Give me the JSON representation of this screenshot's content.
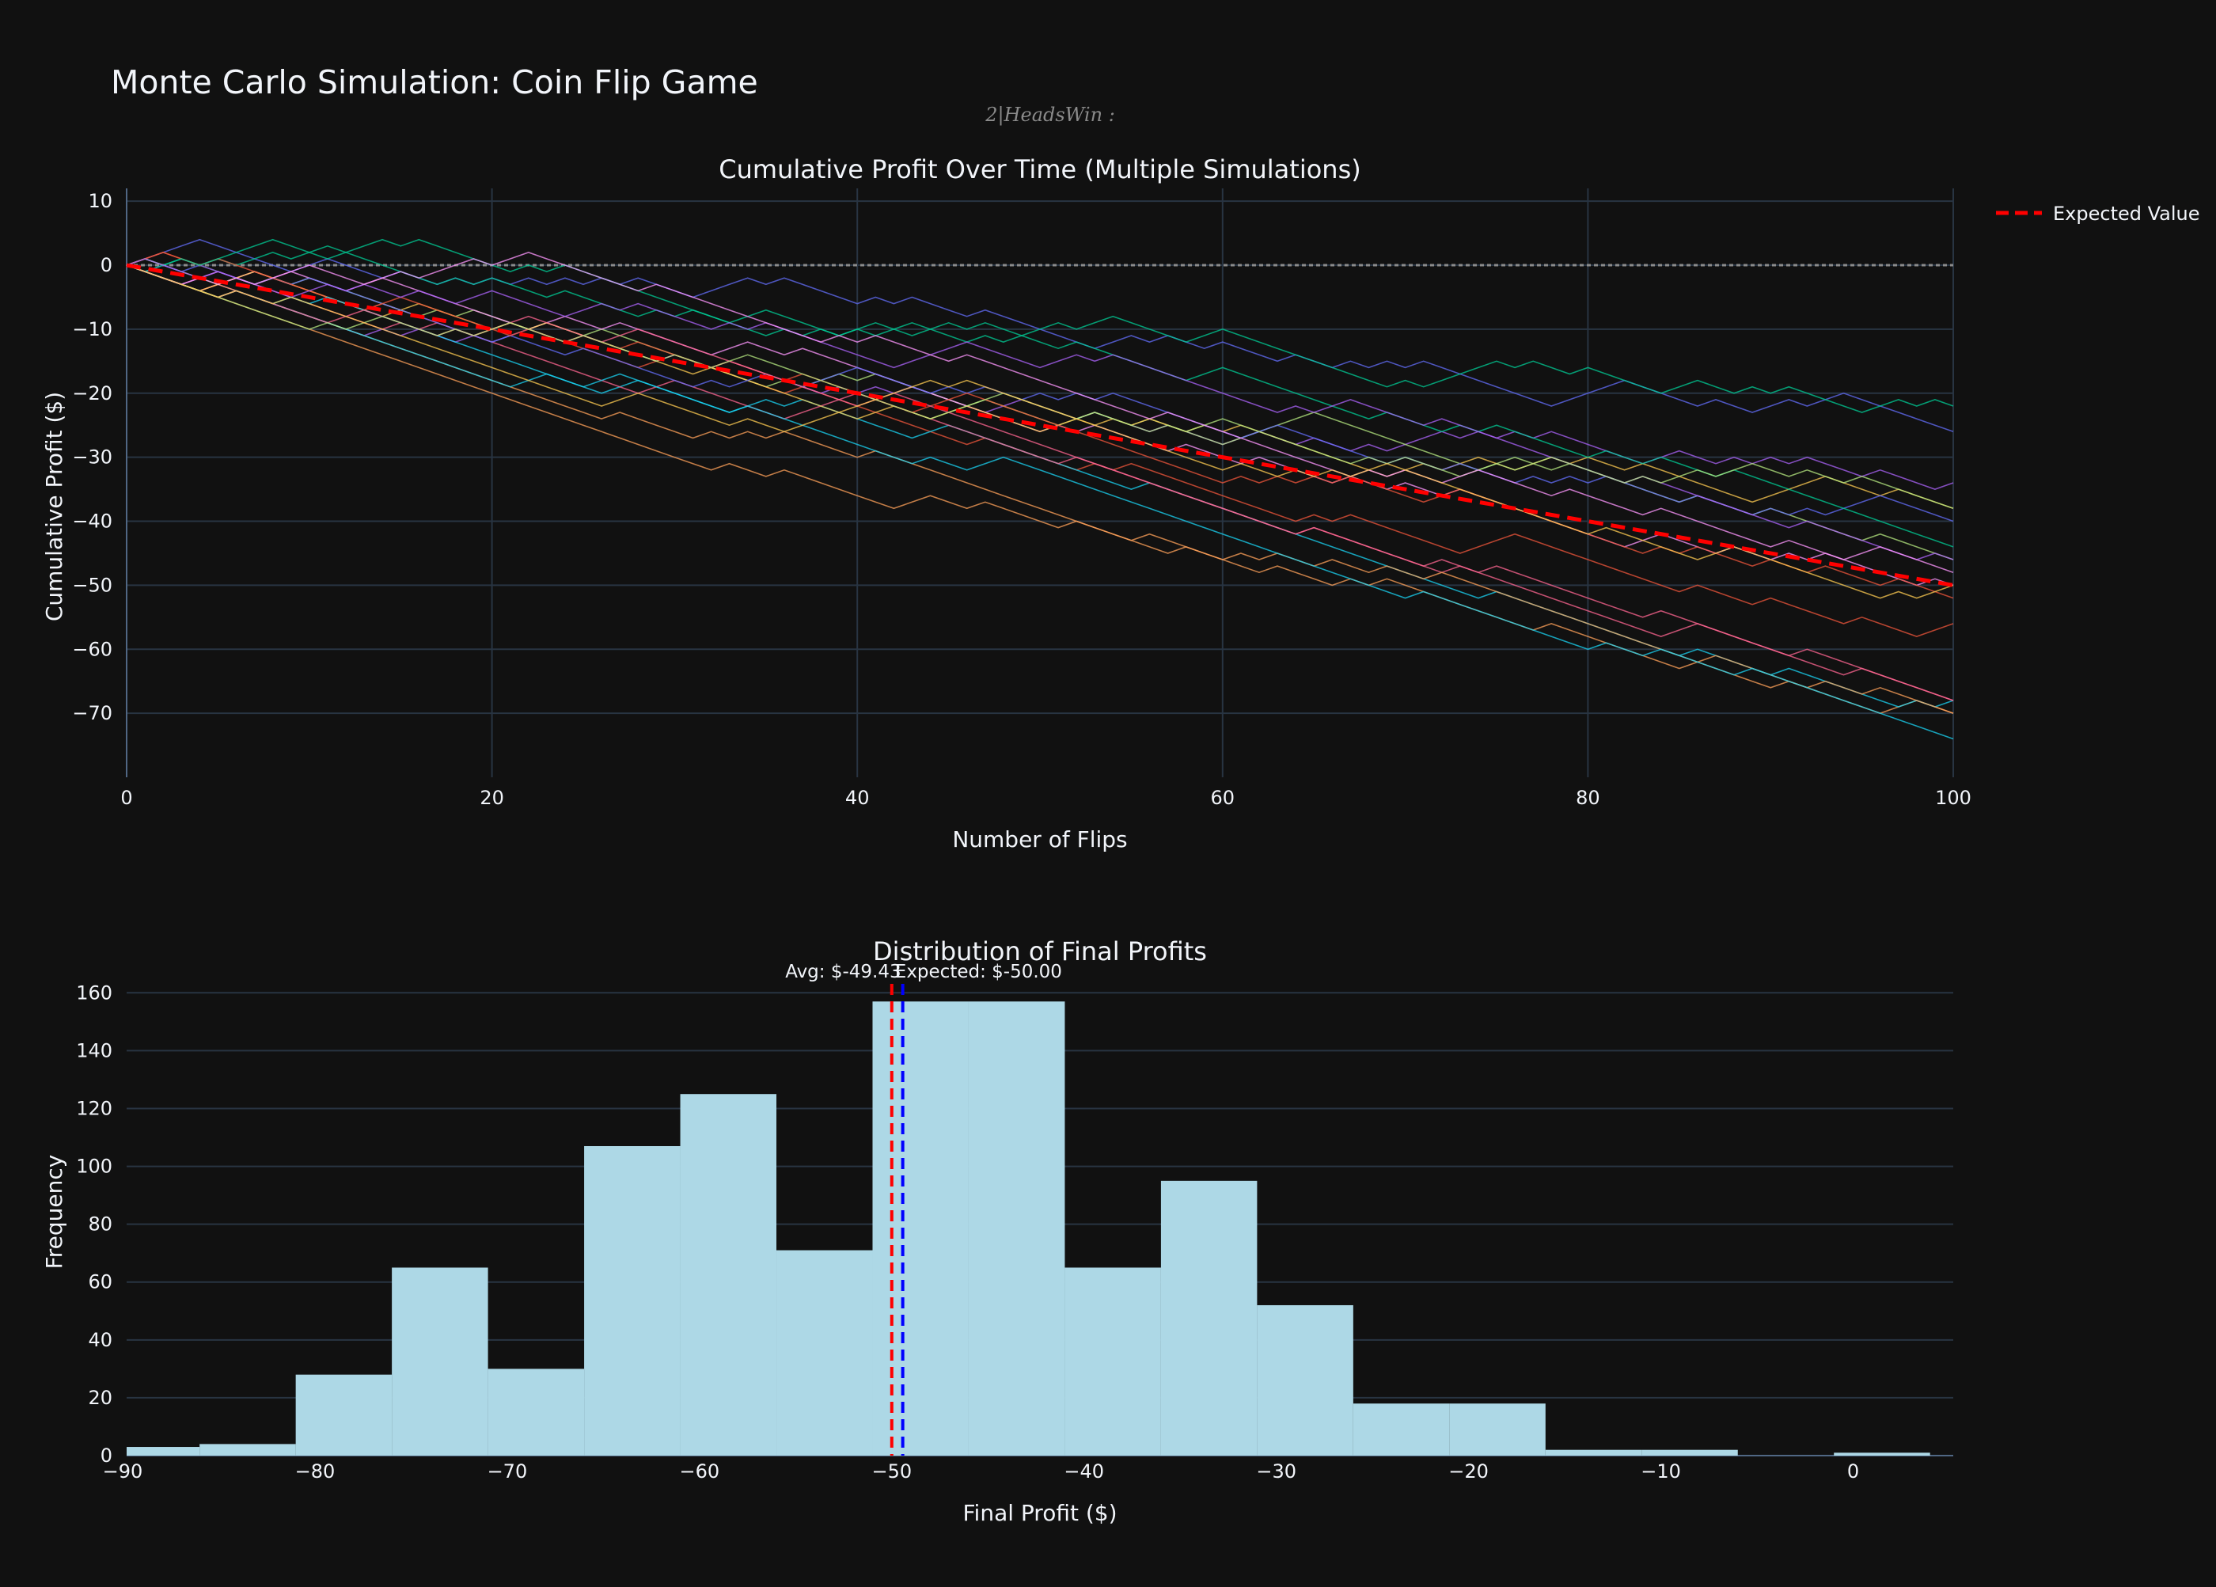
{
  "title": "Monte Carlo Simulation: Coin Flip Game",
  "subtitle": "2|HeadsWin :",
  "colors": {
    "background": "#111111",
    "grid": "#283442",
    "expected_line": "#ff0000",
    "average_line": "#0000ff",
    "histogram_bar": "#add8e6",
    "simulation_palette": [
      "#636efa",
      "#ef553b",
      "#00cc96",
      "#ab63fa",
      "#ffa15a",
      "#19d3f3",
      "#ff6692",
      "#b6e880",
      "#ff97ff",
      "#fecb52"
    ]
  },
  "chart_data": [
    {
      "type": "line",
      "title": "Cumulative Profit Over Time (Multiple Simulations)",
      "xlabel": "Number of Flips",
      "ylabel": "Cumulative Profit ($)",
      "xlim": [
        0,
        100
      ],
      "ylim": [
        -80,
        12
      ],
      "xticks": [
        0,
        20,
        40,
        60,
        80,
        100
      ],
      "yticks": [
        10,
        0,
        -10,
        -20,
        -30,
        -40,
        -50,
        -60,
        -70
      ],
      "legend": {
        "position": "top-right",
        "entries": [
          "Expected Value"
        ]
      },
      "expected_value": {
        "name": "Expected Value",
        "x": [
          0,
          100
        ],
        "y": [
          0,
          -50
        ]
      },
      "zero_reference": 0,
      "simulations": {
        "count": 20,
        "flips": 100,
        "final_values": [
          -26,
          -56,
          -23,
          -35,
          -71,
          -68,
          -69,
          -47,
          -50,
          -38,
          -41,
          -53,
          -44,
          -47,
          -71,
          -74,
          -69,
          -38,
          -49,
          -51
        ]
      }
    },
    {
      "type": "bar",
      "title": "Distribution of Final Profits",
      "xlabel": "Final Profit ($)",
      "ylabel": "Frequency",
      "xlim": [
        -90,
        5
      ],
      "ylim": [
        0,
        162
      ],
      "xticks": [
        -90,
        -80,
        -70,
        -60,
        -50,
        -40,
        -30,
        -20,
        -10,
        0
      ],
      "yticks": [
        0,
        20,
        40,
        60,
        80,
        100,
        120,
        140,
        160
      ],
      "bins": [
        {
          "x0": -91,
          "x1": -86,
          "count": 3
        },
        {
          "x0": -86,
          "x1": -81,
          "count": 4
        },
        {
          "x0": -81,
          "x1": -76,
          "count": 28
        },
        {
          "x0": -76,
          "x1": -71,
          "count": 65
        },
        {
          "x0": -71,
          "x1": -66,
          "count": 30
        },
        {
          "x0": -66,
          "x1": -61,
          "count": 107
        },
        {
          "x0": -61,
          "x1": -56,
          "count": 125
        },
        {
          "x0": -56,
          "x1": -51,
          "count": 71
        },
        {
          "x0": -51,
          "x1": -46,
          "count": 157
        },
        {
          "x0": -46,
          "x1": -41,
          "count": 157
        },
        {
          "x0": -41,
          "x1": -36,
          "count": 65
        },
        {
          "x0": -36,
          "x1": -31,
          "count": 95
        },
        {
          "x0": -31,
          "x1": -26,
          "count": 52
        },
        {
          "x0": -26,
          "x1": -21,
          "count": 18
        },
        {
          "x0": -21,
          "x1": -16,
          "count": 18
        },
        {
          "x0": -16,
          "x1": -11,
          "count": 2
        },
        {
          "x0": -11,
          "x1": -6,
          "count": 2
        },
        {
          "x0": -6,
          "x1": -1,
          "count": 0
        },
        {
          "x0": -1,
          "x1": 4,
          "count": 1
        }
      ],
      "expected_line": {
        "x": -50.0,
        "label": "Expected: $-50.00"
      },
      "average_line": {
        "x": -49.43,
        "label": "Avg: $-49.43"
      }
    }
  ]
}
